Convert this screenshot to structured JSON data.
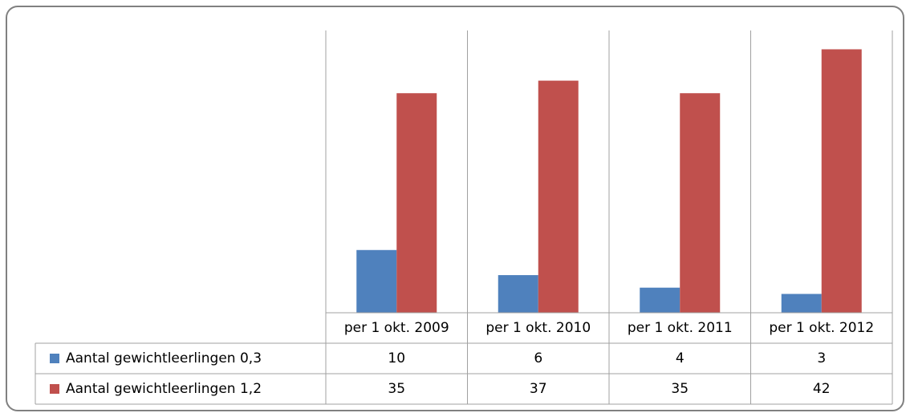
{
  "chart_data": {
    "type": "bar",
    "categories": [
      "per 1 okt. 2009",
      "per 1 okt. 2010",
      "per 1 okt. 2011",
      "per 1 okt. 2012"
    ],
    "series": [
      {
        "name": "Aantal gewichtleerlingen 0,3",
        "color": "#4f81bd",
        "values": [
          10,
          6,
          4,
          3
        ]
      },
      {
        "name": "Aantal gewichtleerlingen 1,2",
        "color": "#c0504d",
        "values": [
          35,
          37,
          35,
          42
        ]
      }
    ],
    "ylim": [
      0,
      45
    ]
  }
}
